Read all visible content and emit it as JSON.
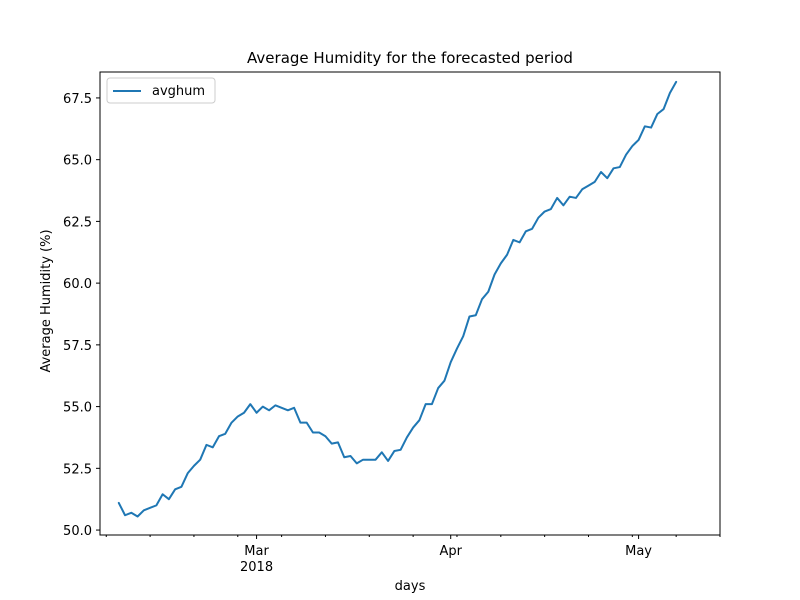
{
  "chart_data": {
    "type": "line",
    "title": "Average Humidity for the forecasted period",
    "xlabel": "days",
    "ylabel": "Average Humidity (%)",
    "grid": false,
    "legend_position": "top-left",
    "x_start": "2018-02-07",
    "xlim": [
      "2018-02-04",
      "2018-05-14"
    ],
    "ylim": [
      49.8,
      68.55
    ],
    "x_ticks": [
      {
        "date": "2018-03-01",
        "label": "Mar",
        "sublabel": "2018"
      },
      {
        "date": "2018-04-01",
        "label": "Apr",
        "sublabel": ""
      },
      {
        "date": "2018-05-01",
        "label": "May",
        "sublabel": ""
      }
    ],
    "y_ticks": [
      {
        "value": 50.0,
        "label": "50.0"
      },
      {
        "value": 52.5,
        "label": "52.5"
      },
      {
        "value": 55.0,
        "label": "55.0"
      },
      {
        "value": 57.5,
        "label": "57.5"
      },
      {
        "value": 60.0,
        "label": "60.0"
      },
      {
        "value": 62.5,
        "label": "62.5"
      },
      {
        "value": 65.0,
        "label": "65.0"
      },
      {
        "value": 67.5,
        "label": "67.5"
      }
    ],
    "series": [
      {
        "name": "avghum",
        "color": "#1f77b4",
        "values": [
          51.1,
          50.6,
          50.7,
          50.55,
          50.8,
          50.9,
          51.0,
          51.45,
          51.25,
          51.65,
          51.75,
          52.3,
          52.6,
          52.85,
          53.45,
          53.35,
          53.8,
          53.9,
          54.35,
          54.6,
          54.75,
          55.1,
          54.75,
          55.0,
          54.85,
          55.05,
          54.95,
          54.85,
          54.95,
          54.35,
          54.35,
          53.95,
          53.95,
          53.8,
          53.5,
          53.55,
          52.95,
          53.0,
          52.7,
          52.85,
          52.85,
          52.85,
          53.15,
          52.8,
          53.2,
          53.25,
          53.75,
          54.15,
          54.45,
          55.1,
          55.1,
          55.75,
          56.05,
          56.8,
          57.35,
          57.85,
          58.65,
          58.7,
          59.35,
          59.65,
          60.35,
          60.8,
          61.15,
          61.75,
          61.65,
          62.1,
          62.2,
          62.65,
          62.9,
          63.0,
          63.45,
          63.15,
          63.5,
          63.45,
          63.8,
          63.95,
          64.1,
          64.5,
          64.25,
          64.65,
          64.7,
          65.2,
          65.55,
          65.8,
          66.35,
          66.3,
          66.85,
          67.05,
          67.7,
          68.15
        ]
      }
    ]
  }
}
